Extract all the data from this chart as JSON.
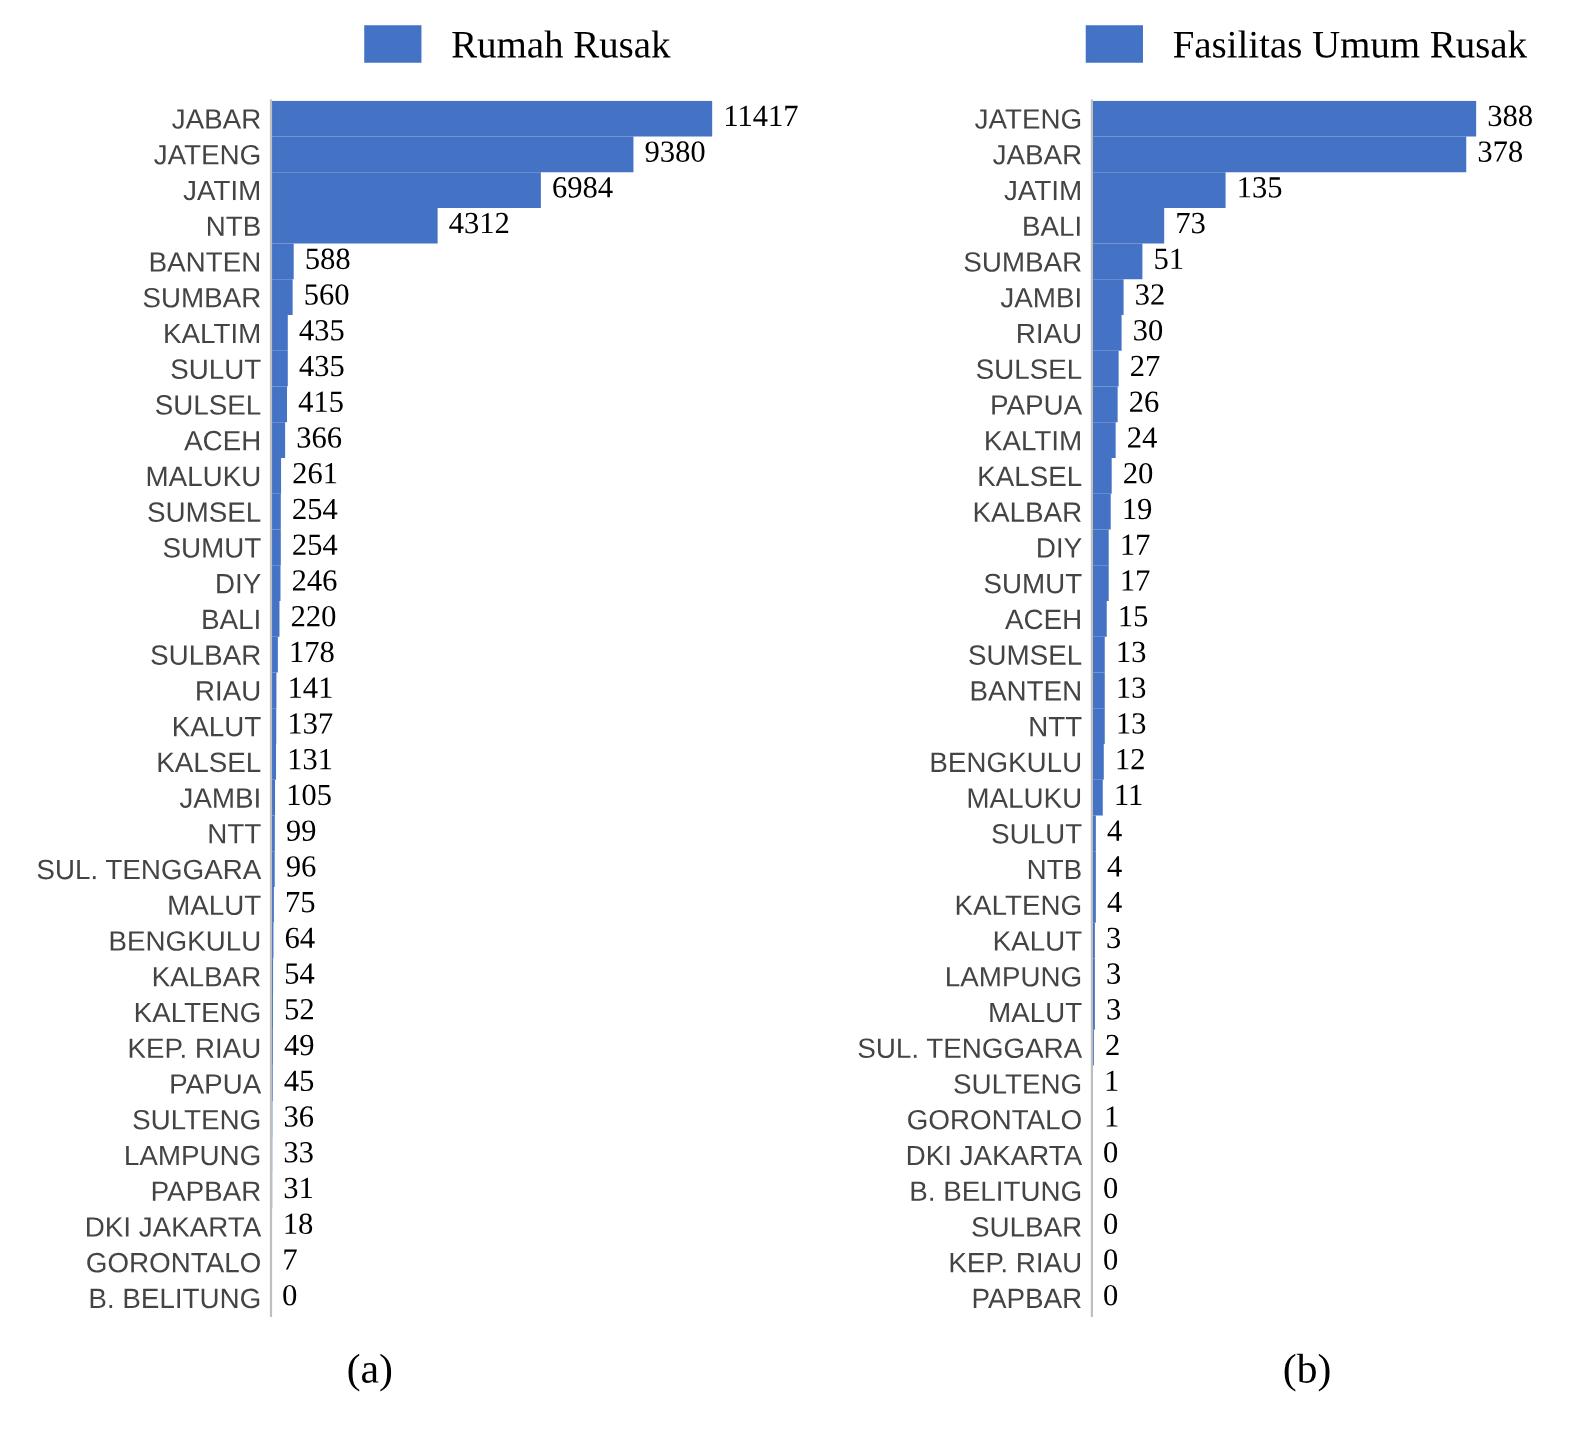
{
  "chart_data": [
    {
      "type": "bar",
      "orientation": "horizontal",
      "legend": "top",
      "data_labels": true,
      "tick_labels": "y",
      "annotations": [
        "(a)"
      ],
      "categories": [
        "JABAR",
        "JATENG",
        "JATIM",
        "NTB",
        "BANTEN",
        "SUMBAR",
        "KALTIM",
        "SULUT",
        "SULSEL",
        "ACEH",
        "MALUKU",
        "SUMSEL",
        "SUMUT",
        "DIY",
        "BALI",
        "SULBAR",
        "RIAU",
        "KALUT",
        "KALSEL",
        "JAMBI",
        "NTT",
        "SUL. TENGGARA",
        "MALUT",
        "BENGKULU",
        "KALBAR",
        "KALTENG",
        "KEP. RIAU",
        "PAPUA",
        "SULTENG",
        "LAMPUNG",
        "PAPBAR",
        "DKI JAKARTA",
        "GORONTALO",
        "B. BELITUNG"
      ],
      "series": [
        {
          "name": "Rumah Rusak",
          "color": "#4472c4",
          "values": [
            11417,
            9380,
            6984,
            4312,
            588,
            560,
            435,
            435,
            415,
            366,
            261,
            254,
            254,
            246,
            220,
            178,
            141,
            137,
            131,
            105,
            99,
            96,
            75,
            64,
            54,
            52,
            49,
            45,
            36,
            33,
            31,
            18,
            7,
            0
          ]
        }
      ]
    },
    {
      "type": "bar",
      "orientation": "horizontal",
      "legend": "top",
      "data_labels": true,
      "tick_labels": "y",
      "annotations": [
        "(b)"
      ],
      "categories": [
        "JATENG",
        "JABAR",
        "JATIM",
        "BALI",
        "SUMBAR",
        "JAMBI",
        "RIAU",
        "SULSEL",
        "PAPUA",
        "KALTIM",
        "KALSEL",
        "KALBAR",
        "DIY",
        "SUMUT",
        "ACEH",
        "SUMSEL",
        "BANTEN",
        "NTT",
        "BENGKULU",
        "MALUKU",
        "SULUT",
        "NTB",
        "KALTENG",
        "KALUT",
        "LAMPUNG",
        "MALUT",
        "SUL. TENGGARA",
        "SULTENG",
        "GORONTALO",
        "DKI JAKARTA",
        "B. BELITUNG",
        "SULBAR",
        "KEP. RIAU",
        "PAPBAR"
      ],
      "series": [
        {
          "name": "Fasilitas Umum Rusak",
          "color": "#4472c4",
          "values": [
            388,
            378,
            135,
            73,
            51,
            32,
            30,
            27,
            26,
            24,
            20,
            19,
            17,
            17,
            15,
            13,
            13,
            13,
            12,
            11,
            4,
            4,
            4,
            3,
            3,
            3,
            2,
            1,
            1,
            0,
            0,
            0,
            0,
            0
          ]
        }
      ]
    }
  ]
}
